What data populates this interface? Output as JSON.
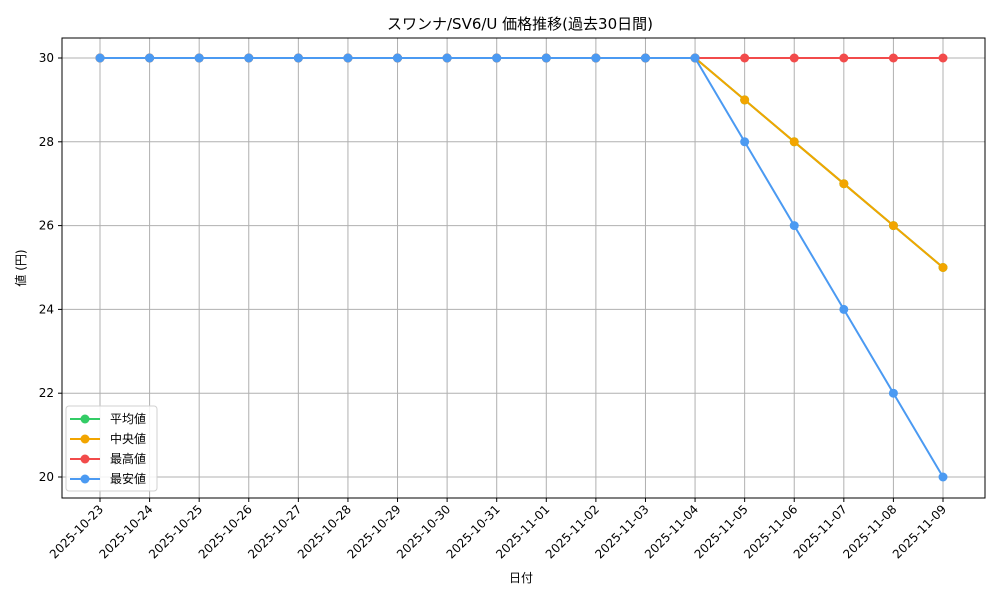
{
  "chart_data": {
    "type": "line",
    "title": "スワンナ/SV6/U 価格推移(過去30日間)",
    "xlabel": "日付",
    "ylabel": "値 (円)",
    "ylim": [
      19.5,
      30.5
    ],
    "yticks": [
      20,
      22,
      24,
      26,
      28,
      30
    ],
    "grid": true,
    "legend_position": "lower left",
    "categories": [
      "2025-10-23",
      "2025-10-24",
      "2025-10-25",
      "2025-10-26",
      "2025-10-27",
      "2025-10-28",
      "2025-10-29",
      "2025-10-30",
      "2025-10-31",
      "2025-11-01",
      "2025-11-02",
      "2025-11-03",
      "2025-11-04",
      "2025-11-05",
      "2025-11-06",
      "2025-11-07",
      "2025-11-08",
      "2025-11-09"
    ],
    "series": [
      {
        "name": "平均値",
        "color": "#33cc66",
        "values": [
          30,
          30,
          30,
          30,
          30,
          30,
          30,
          30,
          30,
          30,
          30,
          30,
          30,
          29,
          28,
          27,
          26,
          25
        ]
      },
      {
        "name": "中央値",
        "color": "#f2a500",
        "values": [
          30,
          30,
          30,
          30,
          30,
          30,
          30,
          30,
          30,
          30,
          30,
          30,
          30,
          29,
          28,
          27,
          26,
          25
        ]
      },
      {
        "name": "最高値",
        "color": "#f24b4b",
        "values": [
          30,
          30,
          30,
          30,
          30,
          30,
          30,
          30,
          30,
          30,
          30,
          30,
          30,
          30,
          30,
          30,
          30,
          30
        ]
      },
      {
        "name": "最安値",
        "color": "#4b9af2",
        "values": [
          30,
          30,
          30,
          30,
          30,
          30,
          30,
          30,
          30,
          30,
          30,
          30,
          30,
          28,
          26,
          24,
          22,
          20
        ]
      }
    ]
  }
}
